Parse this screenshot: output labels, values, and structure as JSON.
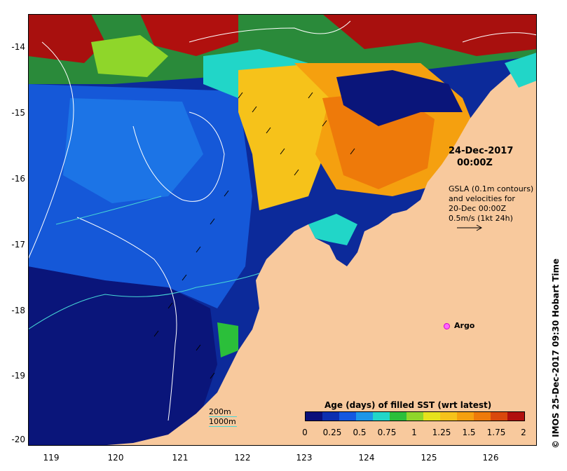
{
  "map": {
    "x_ticks": [
      "119",
      "120",
      "121",
      "122",
      "123",
      "124",
      "125",
      "126"
    ],
    "y_ticks": [
      "-14",
      "-15",
      "-16",
      "-17",
      "-18",
      "-19",
      "-20"
    ]
  },
  "annotations": {
    "valid_time_date": "24-Dec-2017",
    "valid_time_hour": "00:00Z",
    "gsla_line1": "GSLA (0.1m contours)",
    "gsla_line2": "and velocities for",
    "gsla_line3": "20-Dec 00:00Z",
    "gsla_line4": "0.5m/s (1kt 24h)",
    "argo_label": "Argo",
    "depth_200": "200m",
    "depth_1000": "1000m",
    "credit": "© IMOS 25-Dec-2017 09:30 Hobart Time"
  },
  "colorbar": {
    "title": "Age (days) of filled SST (wrt latest)",
    "ticks": [
      "0",
      "0.25",
      "0.5",
      "0.75",
      "1",
      "1.25",
      "1.5",
      "1.75",
      "2"
    ],
    "colors": [
      "#0a0f7a",
      "#0c2fb0",
      "#1458e0",
      "#1c96e8",
      "#21d6c8",
      "#2bbf3a",
      "#8fd62a",
      "#e6e21c",
      "#f6c21a",
      "#f5a00f",
      "#ee7a0a",
      "#d9480c",
      "#b0100e"
    ]
  },
  "colors": {
    "land": "#f8c99d",
    "ocean_deep": "#0a1f80",
    "ocean_blue": "#1552c7",
    "contour": "#ffffff",
    "isobath": "#46d6d6"
  }
}
